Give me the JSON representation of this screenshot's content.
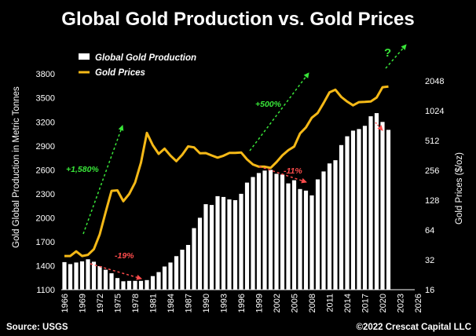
{
  "chart_data": {
    "type": "bar+line",
    "title": "Global Gold Production vs. Gold Prices",
    "ylabel_left": "Gold Global Production in Metric Tonnes",
    "ylabel_right": "Gold Prices ($/oz)",
    "left_axis": {
      "min": 1100,
      "max": 3900,
      "ticks": [
        1100,
        1400,
        1700,
        2000,
        2300,
        2600,
        2900,
        3200,
        3500,
        3800
      ]
    },
    "right_axis": {
      "scale": "log2",
      "min": 16,
      "max": 2900,
      "ticks": [
        16,
        32,
        64,
        128,
        256,
        512,
        1024,
        2048
      ]
    },
    "x_ticks": [
      "1966",
      "1969",
      "1972",
      "1975",
      "1978",
      "1981",
      "1984",
      "1987",
      "1990",
      "1993",
      "1996",
      "1999",
      "2002",
      "2005",
      "2008",
      "2011",
      "2014",
      "2017",
      "2020",
      "2023",
      "2026"
    ],
    "x_range": [
      1966,
      2026
    ],
    "series": [
      {
        "name": "Global Gold Production",
        "kind": "bar",
        "color": "#ffffff",
        "x": [
          1966,
          1967,
          1968,
          1969,
          1970,
          1971,
          1972,
          1973,
          1974,
          1975,
          1976,
          1977,
          1978,
          1979,
          1980,
          1981,
          1982,
          1983,
          1984,
          1985,
          1986,
          1987,
          1988,
          1989,
          1990,
          1991,
          1992,
          1993,
          1994,
          1995,
          1996,
          1997,
          1998,
          1999,
          2000,
          2001,
          2002,
          2003,
          2004,
          2005,
          2006,
          2007,
          2008,
          2009,
          2010,
          2011,
          2012,
          2013,
          2014,
          2015,
          2016,
          2017,
          2018,
          2019,
          2020,
          2021
        ],
        "values": [
          1445,
          1420,
          1440,
          1455,
          1480,
          1450,
          1395,
          1350,
          1305,
          1245,
          1205,
          1210,
          1210,
          1210,
          1220,
          1270,
          1320,
          1390,
          1440,
          1520,
          1600,
          1660,
          1870,
          2000,
          2170,
          2160,
          2270,
          2260,
          2230,
          2220,
          2300,
          2440,
          2510,
          2560,
          2590,
          2600,
          2550,
          2540,
          2430,
          2470,
          2360,
          2340,
          2280,
          2480,
          2580,
          2680,
          2720,
          2910,
          3020,
          3090,
          3110,
          3150,
          3270,
          3310,
          3200,
          3100
        ]
      },
      {
        "name": "Gold Prices",
        "kind": "line",
        "color": "#f5b917",
        "axis": "right",
        "x": [
          1966,
          1967,
          1968,
          1969,
          1970,
          1971,
          1972,
          1973,
          1974,
          1975,
          1976,
          1977,
          1978,
          1979,
          1980,
          1981,
          1982,
          1983,
          1984,
          1985,
          1986,
          1987,
          1988,
          1989,
          1990,
          1991,
          1992,
          1993,
          1994,
          1995,
          1996,
          1997,
          1998,
          1999,
          2000,
          2001,
          2002,
          2003,
          2004,
          2005,
          2006,
          2007,
          2008,
          2009,
          2010,
          2011,
          2012,
          2013,
          2014,
          2015,
          2016,
          2017,
          2018,
          2019,
          2020,
          2021
        ],
        "values": [
          35,
          35,
          39,
          35,
          36,
          41,
          58,
          97,
          159,
          161,
          125,
          148,
          193,
          307,
          612,
          460,
          376,
          424,
          361,
          317,
          368,
          447,
          437,
          381,
          383,
          362,
          344,
          360,
          384,
          384,
          388,
          331,
          294,
          279,
          279,
          271,
          310,
          363,
          409,
          445,
          604,
          695,
          872,
          972,
          1225,
          1572,
          1669,
          1411,
          1266,
          1160,
          1251,
          1257,
          1268,
          1393,
          1770,
          1799
        ]
      }
    ],
    "legend": {
      "position": "top-left",
      "entries": [
        "Global Gold Production",
        "Gold Prices"
      ]
    },
    "annotations": [
      {
        "text": "+1,580%",
        "color": "#39e639"
      },
      {
        "text": "-19%",
        "color": "#ff4c4c"
      },
      {
        "text": "+500%",
        "color": "#39e639"
      },
      {
        "text": "-11%",
        "color": "#ff4c4c"
      },
      {
        "text": "?",
        "color": "#39e639"
      }
    ],
    "grid": false
  },
  "footer": {
    "source": "Source: USGS",
    "copyright": "©2022 Crescat Capital LLC"
  }
}
